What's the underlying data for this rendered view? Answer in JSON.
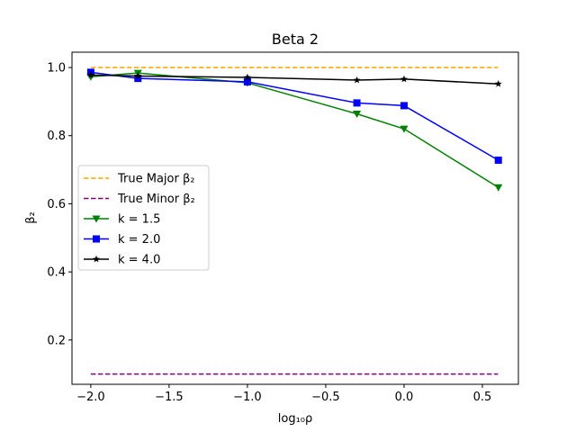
{
  "chart_data": {
    "type": "line",
    "title": "Beta 2",
    "xlabel": "log₁₀ρ",
    "ylabel": "β₂",
    "xlim": [
      -2.12,
      0.73
    ],
    "ylim": [
      0.07,
      1.045
    ],
    "xticks": [
      -2.0,
      -1.5,
      -1.0,
      -0.5,
      0.0,
      0.5
    ],
    "xtick_labels": [
      "−2.0",
      "−1.5",
      "−1.0",
      "−0.5",
      "0.0",
      "0.5"
    ],
    "yticks": [
      0.2,
      0.4,
      0.6,
      0.8,
      1.0
    ],
    "ytick_labels": [
      "0.2",
      "0.4",
      "0.6",
      "0.8",
      "1.0"
    ],
    "grid": false,
    "legend_position": "center-left",
    "series": [
      {
        "name": "True Major β₂",
        "color": "#FFA500",
        "style": "dashed",
        "marker": "none",
        "x": [
          -2.0,
          0.6
        ],
        "y": [
          1.0,
          1.0
        ]
      },
      {
        "name": "True Minor β₂",
        "color": "#800080",
        "style": "dashed",
        "marker": "none",
        "x": [
          -2.0,
          0.6
        ],
        "y": [
          0.1,
          0.1
        ]
      },
      {
        "name": "k = 1.5",
        "color": "#008000",
        "style": "solid",
        "marker": "triangle-down",
        "x": [
          -2.0,
          -1.699,
          -1.0,
          -0.301,
          0.0,
          0.602
        ],
        "y": [
          0.973,
          0.984,
          0.955,
          0.864,
          0.82,
          0.648
        ]
      },
      {
        "name": "k = 2.0",
        "color": "#0000FF",
        "style": "solid",
        "marker": "square",
        "x": [
          -2.0,
          -1.699,
          -1.0,
          -0.301,
          0.0,
          0.602
        ],
        "y": [
          0.986,
          0.968,
          0.958,
          0.896,
          0.888,
          0.728
        ]
      },
      {
        "name": "k = 4.0",
        "color": "#000000",
        "style": "solid",
        "marker": "star",
        "x": [
          -2.0,
          -1.699,
          -1.0,
          -0.301,
          0.0,
          0.602
        ],
        "y": [
          0.978,
          0.975,
          0.971,
          0.963,
          0.966,
          0.952
        ]
      }
    ]
  }
}
